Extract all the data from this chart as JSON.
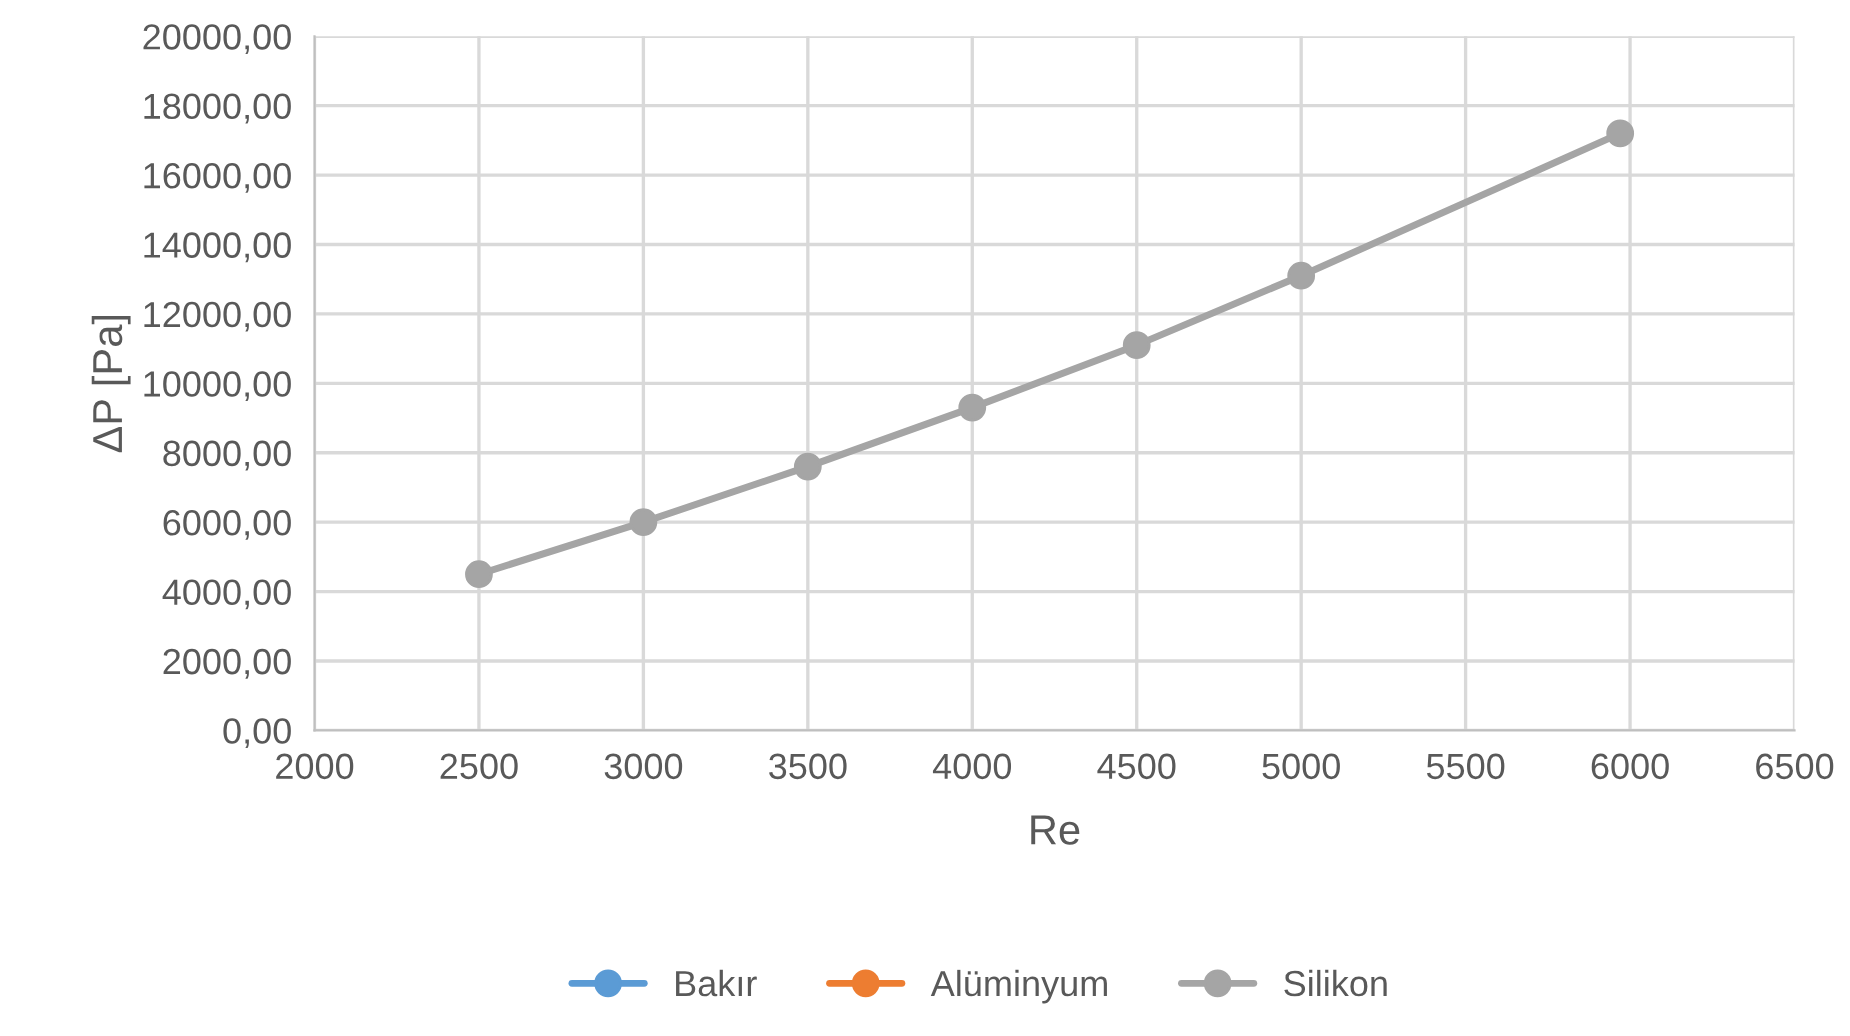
{
  "chart_data": {
    "type": "line",
    "xlabel": "Re",
    "ylabel": "ΔP [Pa]",
    "x": [
      2500,
      3000,
      3500,
      4000,
      4500,
      5000,
      5970
    ],
    "series": [
      {
        "name": "Bakır",
        "color": "#5b9bd5",
        "values": [
          null,
          null,
          null,
          null,
          null,
          null,
          null
        ]
      },
      {
        "name": "Alüminyum",
        "color": "#ed7d31",
        "values": [
          null,
          null,
          null,
          null,
          null,
          null,
          null
        ]
      },
      {
        "name": "Silikon",
        "color": "#a5a5a5",
        "values": [
          4500,
          6000,
          7600,
          9300,
          11100,
          13100,
          17200
        ]
      }
    ],
    "xlim": [
      2000,
      6500
    ],
    "xticks": [
      2000,
      2500,
      3000,
      3500,
      4000,
      4500,
      5000,
      5500,
      6000,
      6500
    ],
    "ylim": [
      0,
      20000
    ],
    "yticks": [
      {
        "value": 0,
        "label": "0,00"
      },
      {
        "value": 2000,
        "label": "2000,00"
      },
      {
        "value": 4000,
        "label": "4000,00"
      },
      {
        "value": 6000,
        "label": "6000,00"
      },
      {
        "value": 8000,
        "label": "8000,00"
      },
      {
        "value": 10000,
        "label": "10000,00"
      },
      {
        "value": 12000,
        "label": "12000,00"
      },
      {
        "value": 14000,
        "label": "14000,00"
      },
      {
        "value": 16000,
        "label": "16000,00"
      },
      {
        "value": 18000,
        "label": "18000,00"
      },
      {
        "value": 20000,
        "label": "20000,00"
      }
    ],
    "grid": true,
    "legend": "bottom",
    "marker": "circle",
    "line_style": "solid"
  }
}
